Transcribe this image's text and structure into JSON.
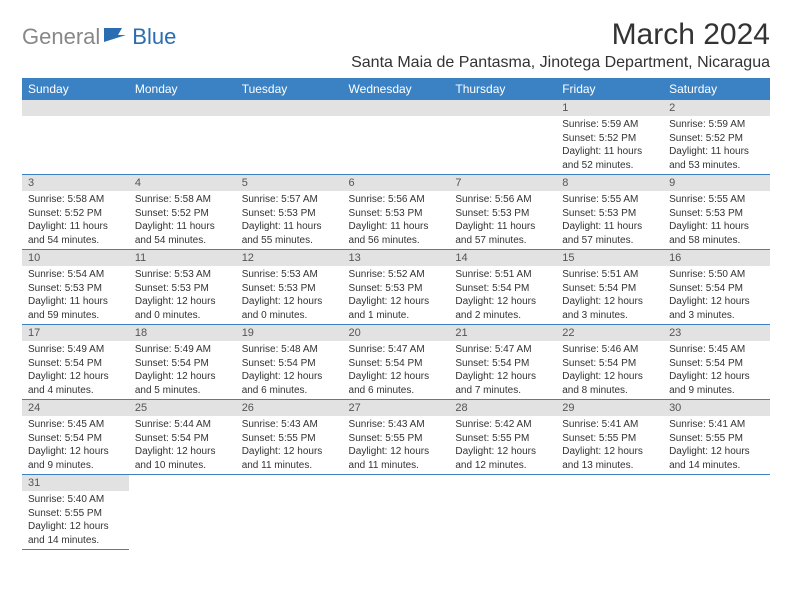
{
  "logo": {
    "gray": "General",
    "blue": "Blue"
  },
  "title": "March 2024",
  "location": "Santa Maia de Pantasma, Jinotega Department, Nicaragua",
  "colors": {
    "header_bg": "#3b82c4",
    "header_fg": "#ffffff",
    "daynum_bg": "#e2e2e2",
    "daynum_fg": "#555555",
    "text": "#333333",
    "logo_gray": "#888888",
    "logo_blue": "#2a6db0",
    "row_border": "#3b82c4"
  },
  "weekdays": [
    "Sunday",
    "Monday",
    "Tuesday",
    "Wednesday",
    "Thursday",
    "Friday",
    "Saturday"
  ],
  "weeks": [
    [
      null,
      null,
      null,
      null,
      null,
      {
        "d": "1",
        "sr": "5:59 AM",
        "ss": "5:52 PM",
        "dl": "11 hours and 52 minutes."
      },
      {
        "d": "2",
        "sr": "5:59 AM",
        "ss": "5:52 PM",
        "dl": "11 hours and 53 minutes."
      }
    ],
    [
      {
        "d": "3",
        "sr": "5:58 AM",
        "ss": "5:52 PM",
        "dl": "11 hours and 54 minutes."
      },
      {
        "d": "4",
        "sr": "5:58 AM",
        "ss": "5:52 PM",
        "dl": "11 hours and 54 minutes."
      },
      {
        "d": "5",
        "sr": "5:57 AM",
        "ss": "5:53 PM",
        "dl": "11 hours and 55 minutes."
      },
      {
        "d": "6",
        "sr": "5:56 AM",
        "ss": "5:53 PM",
        "dl": "11 hours and 56 minutes."
      },
      {
        "d": "7",
        "sr": "5:56 AM",
        "ss": "5:53 PM",
        "dl": "11 hours and 57 minutes."
      },
      {
        "d": "8",
        "sr": "5:55 AM",
        "ss": "5:53 PM",
        "dl": "11 hours and 57 minutes."
      },
      {
        "d": "9",
        "sr": "5:55 AM",
        "ss": "5:53 PM",
        "dl": "11 hours and 58 minutes."
      }
    ],
    [
      {
        "d": "10",
        "sr": "5:54 AM",
        "ss": "5:53 PM",
        "dl": "11 hours and 59 minutes."
      },
      {
        "d": "11",
        "sr": "5:53 AM",
        "ss": "5:53 PM",
        "dl": "12 hours and 0 minutes."
      },
      {
        "d": "12",
        "sr": "5:53 AM",
        "ss": "5:53 PM",
        "dl": "12 hours and 0 minutes."
      },
      {
        "d": "13",
        "sr": "5:52 AM",
        "ss": "5:53 PM",
        "dl": "12 hours and 1 minute."
      },
      {
        "d": "14",
        "sr": "5:51 AM",
        "ss": "5:54 PM",
        "dl": "12 hours and 2 minutes."
      },
      {
        "d": "15",
        "sr": "5:51 AM",
        "ss": "5:54 PM",
        "dl": "12 hours and 3 minutes."
      },
      {
        "d": "16",
        "sr": "5:50 AM",
        "ss": "5:54 PM",
        "dl": "12 hours and 3 minutes."
      }
    ],
    [
      {
        "d": "17",
        "sr": "5:49 AM",
        "ss": "5:54 PM",
        "dl": "12 hours and 4 minutes."
      },
      {
        "d": "18",
        "sr": "5:49 AM",
        "ss": "5:54 PM",
        "dl": "12 hours and 5 minutes."
      },
      {
        "d": "19",
        "sr": "5:48 AM",
        "ss": "5:54 PM",
        "dl": "12 hours and 6 minutes."
      },
      {
        "d": "20",
        "sr": "5:47 AM",
        "ss": "5:54 PM",
        "dl": "12 hours and 6 minutes."
      },
      {
        "d": "21",
        "sr": "5:47 AM",
        "ss": "5:54 PM",
        "dl": "12 hours and 7 minutes."
      },
      {
        "d": "22",
        "sr": "5:46 AM",
        "ss": "5:54 PM",
        "dl": "12 hours and 8 minutes."
      },
      {
        "d": "23",
        "sr": "5:45 AM",
        "ss": "5:54 PM",
        "dl": "12 hours and 9 minutes."
      }
    ],
    [
      {
        "d": "24",
        "sr": "5:45 AM",
        "ss": "5:54 PM",
        "dl": "12 hours and 9 minutes."
      },
      {
        "d": "25",
        "sr": "5:44 AM",
        "ss": "5:54 PM",
        "dl": "12 hours and 10 minutes."
      },
      {
        "d": "26",
        "sr": "5:43 AM",
        "ss": "5:55 PM",
        "dl": "12 hours and 11 minutes."
      },
      {
        "d": "27",
        "sr": "5:43 AM",
        "ss": "5:55 PM",
        "dl": "12 hours and 11 minutes."
      },
      {
        "d": "28",
        "sr": "5:42 AM",
        "ss": "5:55 PM",
        "dl": "12 hours and 12 minutes."
      },
      {
        "d": "29",
        "sr": "5:41 AM",
        "ss": "5:55 PM",
        "dl": "12 hours and 13 minutes."
      },
      {
        "d": "30",
        "sr": "5:41 AM",
        "ss": "5:55 PM",
        "dl": "12 hours and 14 minutes."
      }
    ],
    [
      {
        "d": "31",
        "sr": "5:40 AM",
        "ss": "5:55 PM",
        "dl": "12 hours and 14 minutes."
      },
      null,
      null,
      null,
      null,
      null,
      null
    ]
  ],
  "labels": {
    "sunrise": "Sunrise: ",
    "sunset": "Sunset: ",
    "daylight": "Daylight: "
  }
}
